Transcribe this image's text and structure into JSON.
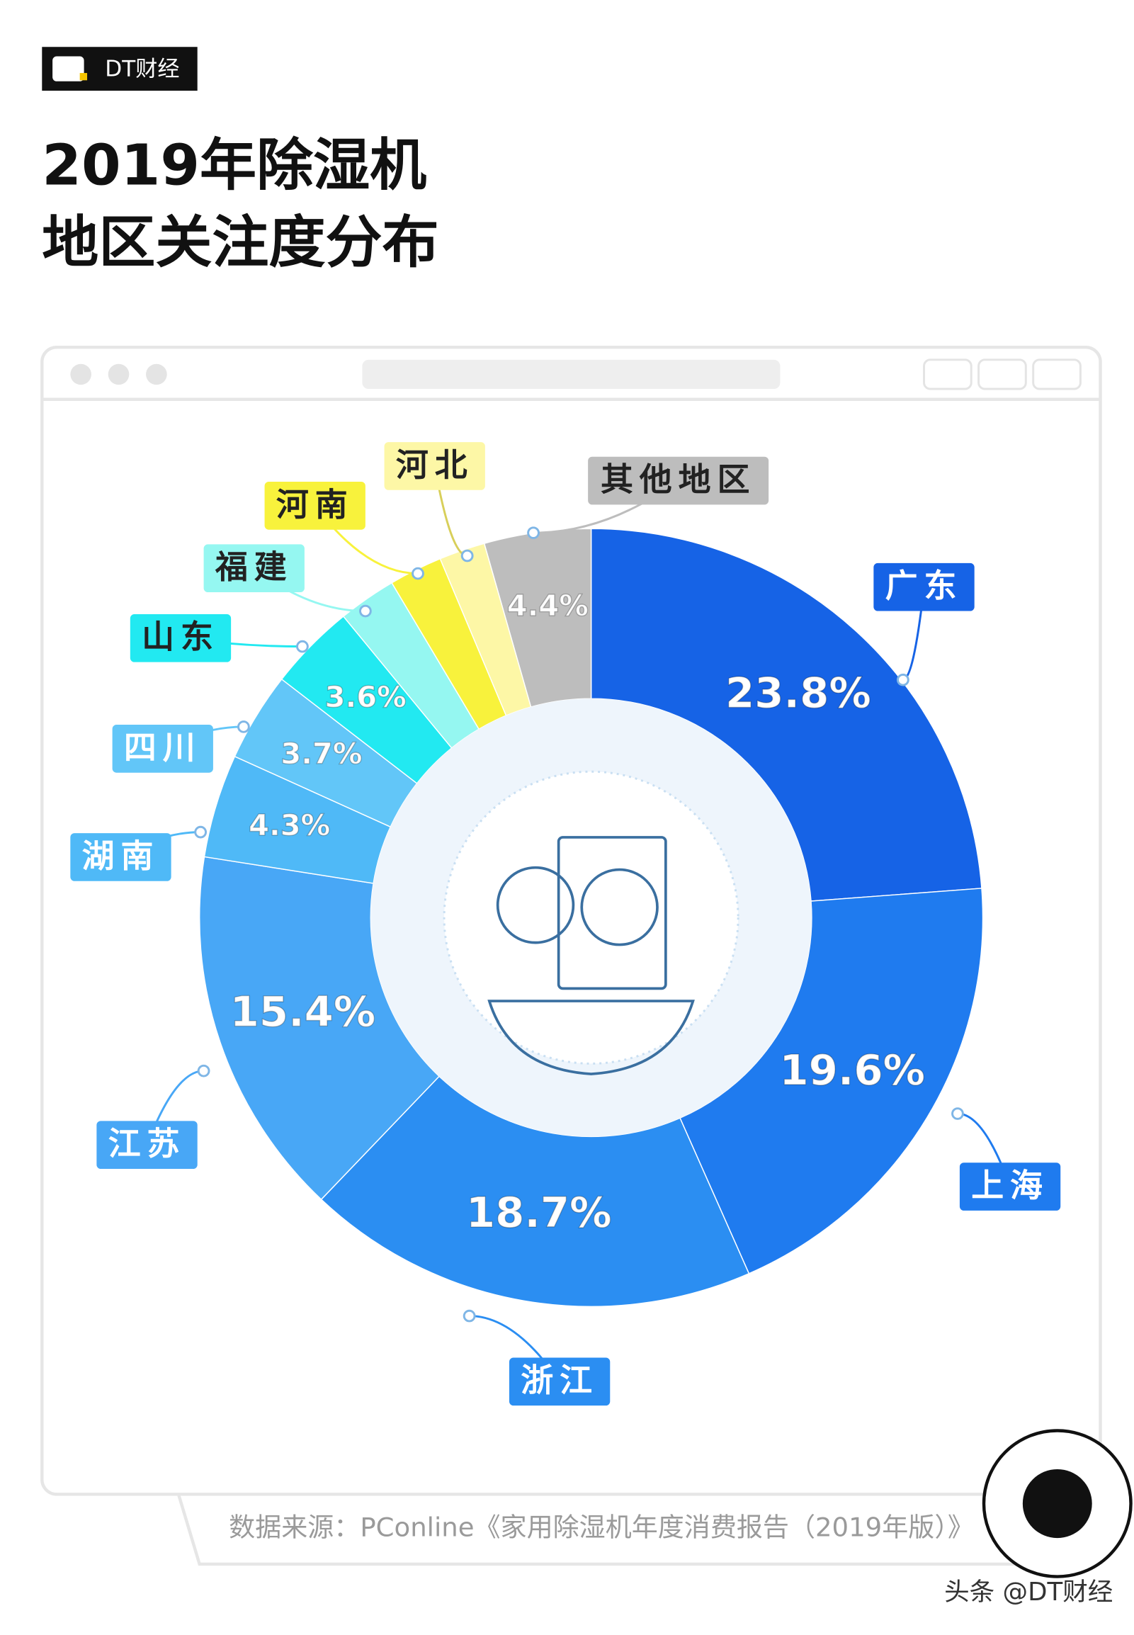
{
  "header": {
    "logo": "DT财经",
    "title_lines": [
      "2019年除湿机",
      "地区关注度分布"
    ]
  },
  "chart_data": {
    "type": "pie",
    "categories": [
      "广东",
      "上海",
      "浙江",
      "江苏",
      "湖南",
      "四川",
      "山东",
      "福建",
      "河南",
      "河北",
      "其他地区"
    ],
    "values": [
      23.8,
      19.6,
      18.7,
      15.4,
      4.3,
      3.7,
      3.6,
      2.4,
      2.2,
      1.9,
      4.4
    ],
    "value_labels": [
      "23.8%",
      "19.6%",
      "18.7%",
      "15.4%",
      "4.3%",
      "3.7%",
      "3.6%",
      null,
      null,
      null,
      "4.4%"
    ],
    "colors": [
      "#1663e6",
      "#1f7bef",
      "#2b8ef2",
      "#48a7f6",
      "#4fb9f7",
      "#62c6f8",
      "#22e9f1",
      "#95f7f1",
      "#f8f23c",
      "#fdf7a6",
      "#bdbdbd"
    ]
  },
  "source": "数据来源：PConline《家用除湿机年度消费报告（2019年版）》",
  "watermark": "头条 @DT财经"
}
